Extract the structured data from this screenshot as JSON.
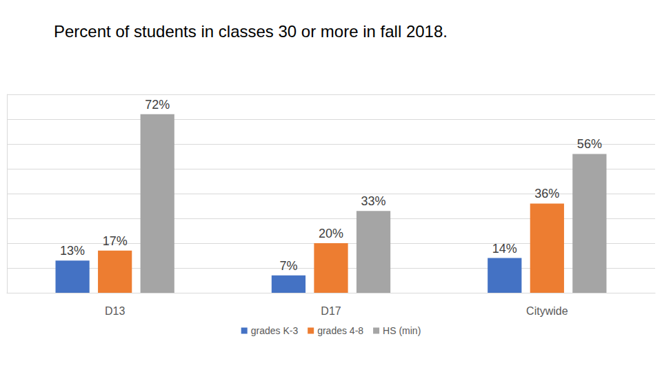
{
  "chart_data": {
    "type": "bar",
    "title": "Percent of students in classes 30 or more in fall 2018.",
    "categories": [
      "D13",
      "D17",
      "Citywide"
    ],
    "series": [
      {
        "name": "grades K-3",
        "color": "#4472c4",
        "values": [
          13,
          7,
          14
        ],
        "value_labels": [
          "13%",
          "7%",
          "14%"
        ]
      },
      {
        "name": "grades 4-8",
        "color": "#ed7d31",
        "values": [
          17,
          20,
          36
        ],
        "value_labels": [
          "17%",
          "20%",
          "36%"
        ]
      },
      {
        "name": "HS (min)",
        "color": "#a5a5a5",
        "values": [
          72,
          33,
          56
        ],
        "value_labels": [
          "72%",
          "33%",
          "56%"
        ]
      }
    ],
    "ylim": [
      0,
      80
    ],
    "yticks": [
      0,
      10,
      20,
      30,
      40,
      50,
      60,
      70,
      80
    ],
    "grid": true,
    "legend": "bottom",
    "data_labels": true,
    "tick_labels": "x"
  }
}
